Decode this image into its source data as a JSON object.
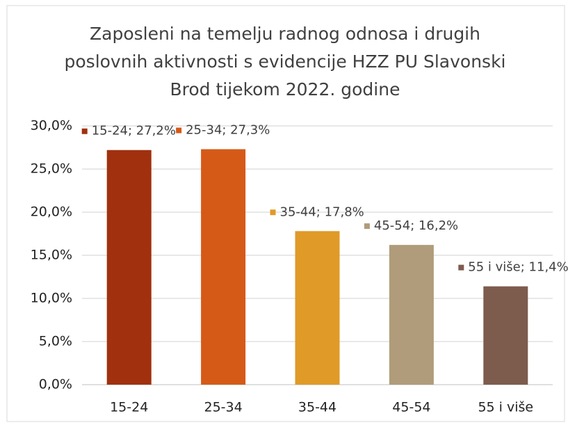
{
  "chart_data": {
    "type": "bar",
    "title": [
      "Zaposleni na temelju radnog odnosa i drugih",
      "poslovnih aktivnosti s evidencije HZZ PU Slavonski",
      "Brod tijekom 2022. godine"
    ],
    "categories": [
      "15-24",
      "25-34",
      "35-44",
      "45-54",
      "55 i više"
    ],
    "values": [
      27.2,
      27.3,
      17.8,
      16.2,
      11.4
    ],
    "value_labels": [
      "15-24; 27,2%",
      "25-34; 27,3%",
      "35-44; 17,8%",
      "45-54; 16,2%",
      "55 i više; 11,4%"
    ],
    "colors": [
      "#a0300e",
      "#d55a18",
      "#e09a28",
      "#b09c7a",
      "#7d5c4e"
    ],
    "ylim": [
      0,
      30
    ],
    "yticks": [
      {
        "value": 0,
        "label": "0,0%"
      },
      {
        "value": 5,
        "label": "5,0%"
      },
      {
        "value": 10,
        "label": "10,0%"
      },
      {
        "value": 15,
        "label": "15,0%"
      },
      {
        "value": 20,
        "label": "20,0%"
      },
      {
        "value": 25,
        "label": "25,0%"
      },
      {
        "value": 30,
        "label": "30,0%"
      }
    ],
    "grid": true
  }
}
